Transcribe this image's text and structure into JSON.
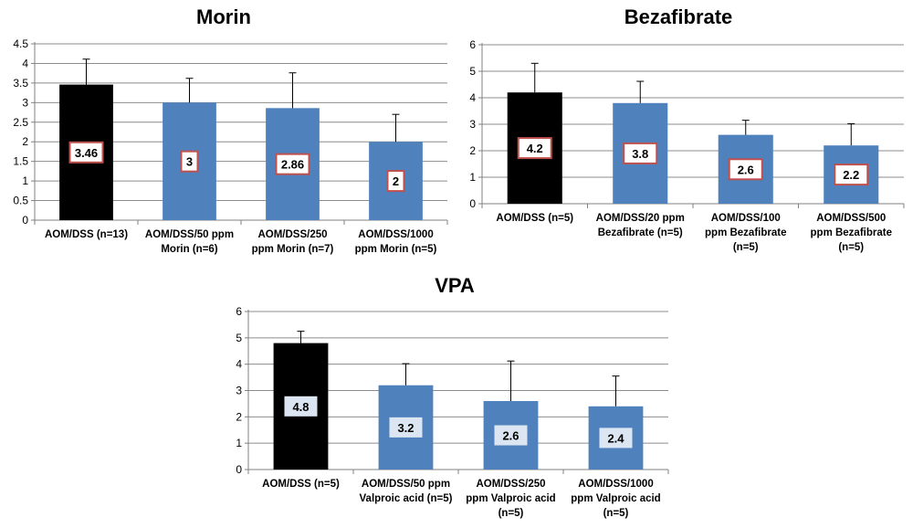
{
  "chart_data": [
    {
      "type": "bar",
      "title": "Morin",
      "xlabel": "",
      "ylabel": "",
      "ylim": [
        0,
        4.5
      ],
      "yticks": [
        "0",
        "0.5",
        "1",
        "1.5",
        "2",
        "2.5",
        "3",
        "3.5",
        "4",
        "4.5"
      ],
      "grid": true,
      "categories": [
        [
          "AOM/DSS (n=13)"
        ],
        [
          "AOM/DSS/50 ppm",
          "Morin (n=6)"
        ],
        [
          "AOM/DSS/250",
          "ppm Morin (n=7)"
        ],
        [
          "AOM/DSS/1000",
          "ppm Morin (n=5)"
        ]
      ],
      "values": [
        3.46,
        3,
        2.86,
        2
      ],
      "error": [
        0.65,
        0.62,
        0.9,
        0.7
      ],
      "data_labels": [
        "3.46",
        "3",
        "2.86",
        "2"
      ],
      "label_style": "red-border",
      "colors": [
        "#000000",
        "#4f81bd",
        "#4f81bd",
        "#4f81bd"
      ]
    },
    {
      "type": "bar",
      "title": "Bezafibrate",
      "xlabel": "",
      "ylabel": "",
      "ylim": [
        0,
        6
      ],
      "yticks": [
        "0",
        "1",
        "2",
        "3",
        "4",
        "5",
        "6"
      ],
      "grid": true,
      "categories": [
        [
          "AOM/DSS (n=5)"
        ],
        [
          "AOM/DSS/20 ppm",
          "Bezafibrate (n=5)"
        ],
        [
          "AOM/DSS/100",
          "ppm Bezafibrate",
          "(n=5)"
        ],
        [
          "AOM/DSS/500",
          "ppm Bezafibrate",
          "(n=5)"
        ]
      ],
      "values": [
        4.2,
        3.8,
        2.6,
        2.2
      ],
      "error": [
        1.1,
        0.82,
        0.55,
        0.82
      ],
      "data_labels": [
        "4.2",
        "3.8",
        "2.6",
        "2.2"
      ],
      "label_style": "red-border",
      "colors": [
        "#000000",
        "#4f81bd",
        "#4f81bd",
        "#4f81bd"
      ]
    },
    {
      "type": "bar",
      "title": "VPA",
      "xlabel": "",
      "ylabel": "",
      "ylim": [
        0,
        6
      ],
      "yticks": [
        "0",
        "1",
        "2",
        "3",
        "4",
        "5",
        "6"
      ],
      "grid": true,
      "categories": [
        [
          "AOM/DSS (n=5)"
        ],
        [
          "AOM/DSS/50 ppm",
          "Valproic acid (n=5)"
        ],
        [
          "AOM/DSS/250",
          "ppm Valproic acid",
          "(n=5)"
        ],
        [
          "AOM/DSS/1000",
          "ppm Valproic acid",
          "(n=5)"
        ]
      ],
      "values": [
        4.8,
        3.2,
        2.6,
        2.4
      ],
      "error": [
        0.45,
        0.82,
        1.52,
        1.15
      ],
      "data_labels": [
        "4.8",
        "3.2",
        "2.6",
        "2.4"
      ],
      "label_style": "light-blue",
      "colors": [
        "#000000",
        "#4f81bd",
        "#4f81bd",
        "#4f81bd"
      ]
    }
  ]
}
